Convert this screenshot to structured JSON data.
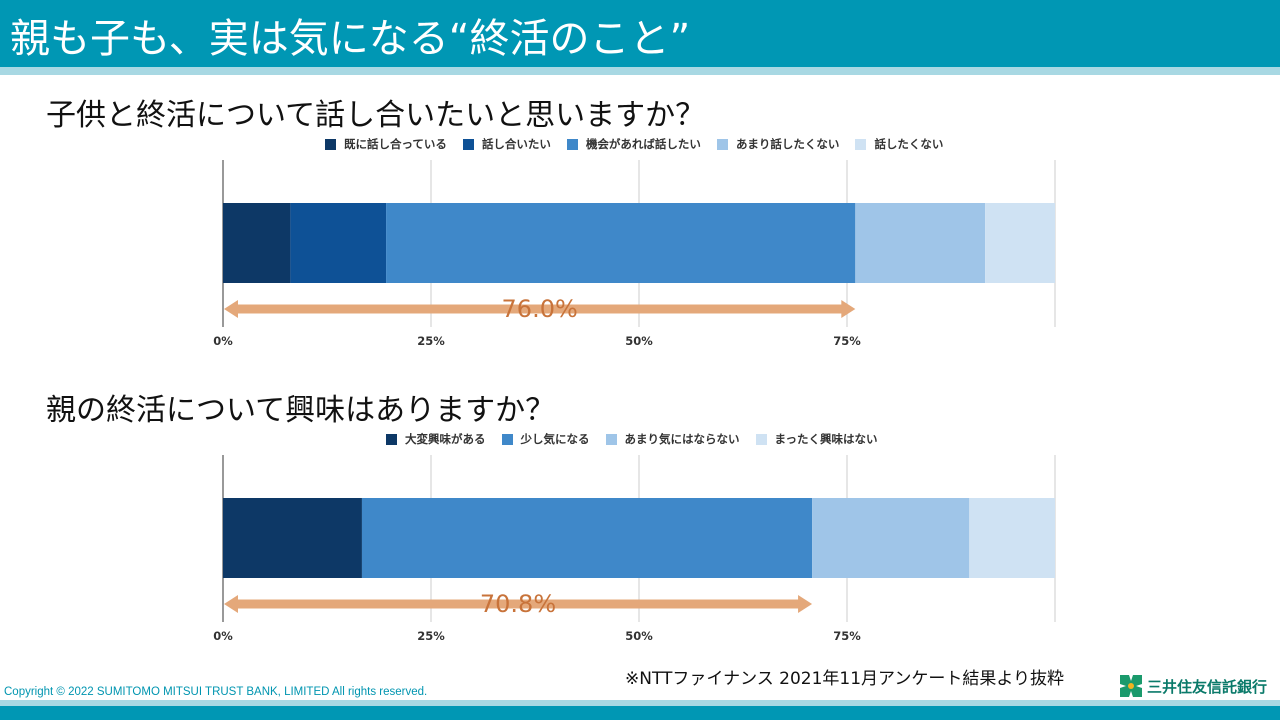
{
  "slide": {
    "title": "親も子も、実は気になる“終活のこと”",
    "source_note": "※NTTファイナンス  2021年11月アンケート結果より抜粋",
    "copyright": "Copyright © 2022  SUMITOMO  MITSUI  TRUST  BANK, LIMITED  All rights reserved.",
    "logo_text": "三井住友信託銀行"
  },
  "colors": {
    "header": "#0097b4",
    "stripe": "#a8d8e3",
    "arrow": "#e4a87a",
    "arrow_text": "#c8733a",
    "grid": "#cccccc"
  },
  "chart_data": [
    {
      "type": "bar",
      "orientation": "horizontal",
      "stacked": true,
      "title": "子供と終活について話し合いたいと思いますか？",
      "xlim": [
        0,
        100
      ],
      "xticks": [
        0,
        25,
        50,
        75
      ],
      "tick_labels": [
        "0%",
        "25%",
        "50%",
        "75%"
      ],
      "legend_position": "top",
      "series": [
        {
          "name": "既に話し合っている",
          "value": 8.1,
          "color": "#0d3866"
        },
        {
          "name": "話し合いたい",
          "value": 11.5,
          "color": "#0e5196"
        },
        {
          "name": "機会があれば話したい",
          "value": 56.4,
          "color": "#3f88c9"
        },
        {
          "name": "あまり話したくない",
          "value": 15.6,
          "color": "#9fc5e8"
        },
        {
          "name": "話したくない",
          "value": 8.4,
          "color": "#cfe2f3"
        }
      ],
      "annotation": {
        "label": "76.0%",
        "from": 0,
        "to": 76.0
      }
    },
    {
      "type": "bar",
      "orientation": "horizontal",
      "stacked": true,
      "title": "親の終活について興味はありますか？",
      "xlim": [
        0,
        100
      ],
      "xticks": [
        0,
        25,
        50,
        75
      ],
      "tick_labels": [
        "0%",
        "25%",
        "50%",
        "75%"
      ],
      "legend_position": "top",
      "series": [
        {
          "name": "大変興味がある",
          "value": 16.7,
          "color": "#0d3866"
        },
        {
          "name": "少し気になる",
          "value": 54.1,
          "color": "#3f88c9"
        },
        {
          "name": "あまり気にはならない",
          "value": 18.9,
          "color": "#9fc5e8"
        },
        {
          "name": "まったく興味はない",
          "value": 10.3,
          "color": "#cfe2f3"
        }
      ],
      "annotation": {
        "label": "70.8%",
        "from": 0,
        "to": 70.8
      }
    }
  ]
}
